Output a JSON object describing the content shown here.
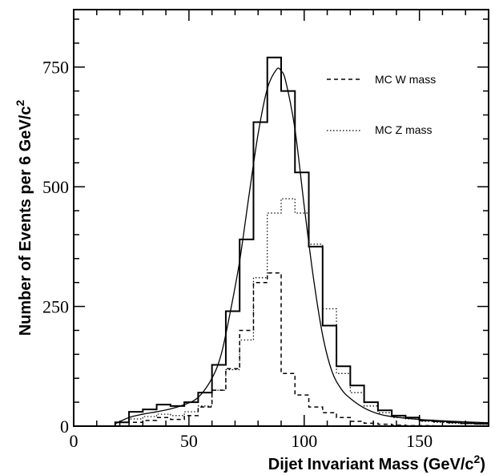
{
  "chart_data": {
    "type": "histogram",
    "title": "",
    "xlabel": "Dijet Invariant Mass (GeV/c",
    "xlabel_sup": "2",
    "xlabel_end": ")",
    "ylabel": "Number of Events per 6 GeV/c",
    "ylabel_sup": "2",
    "xlim": [
      0,
      180
    ],
    "ylim": [
      0,
      870
    ],
    "x_ticks": [
      0,
      50,
      100,
      150
    ],
    "x_tick_labels": [
      "0",
      "50",
      "100",
      "150"
    ],
    "y_ticks": [
      0,
      250,
      500,
      750
    ],
    "y_tick_labels": [
      "0",
      "250",
      "500",
      "750"
    ],
    "bin_edges": [
      18,
      24,
      30,
      36,
      42,
      48,
      54,
      60,
      66,
      72,
      78,
      84,
      90,
      96,
      102,
      108,
      114,
      120,
      126,
      132,
      138,
      144,
      150,
      156,
      162,
      168,
      174,
      180
    ],
    "series": [
      {
        "name": "",
        "style": "solid",
        "values": [
          8,
          30,
          35,
          45,
          42,
          50,
          70,
          128,
          240,
          390,
          635,
          770,
          700,
          530,
          375,
          210,
          125,
          85,
          50,
          33,
          22,
          18,
          12,
          10,
          8,
          6,
          5
        ]
      },
      {
        "name": "MC W mass",
        "style": "dashed",
        "values": [
          0,
          8,
          12,
          18,
          14,
          22,
          40,
          75,
          120,
          200,
          300,
          320,
          110,
          65,
          40,
          28,
          18,
          10,
          6,
          4,
          2,
          1,
          1,
          0,
          0,
          0,
          0
        ]
      },
      {
        "name": "MC Z mass",
        "style": "dotted",
        "values": [
          0,
          15,
          20,
          25,
          22,
          30,
          42,
          75,
          118,
          180,
          310,
          445,
          475,
          445,
          380,
          245,
          110,
          70,
          42,
          28,
          18,
          15,
          10,
          8,
          6,
          5,
          4
        ]
      }
    ],
    "fit_curve": {
      "style": "smooth solid",
      "x": [
        18,
        24,
        30,
        36,
        42,
        48,
        54,
        60,
        64,
        68,
        72,
        76,
        80,
        84,
        88,
        90,
        92,
        96,
        100,
        104,
        108,
        112,
        116,
        120,
        126,
        132,
        138,
        150,
        165,
        180
      ],
      "y": [
        5,
        18,
        25,
        30,
        36,
        45,
        60,
        100,
        150,
        240,
        345,
        480,
        610,
        705,
        745,
        742,
        720,
        620,
        460,
        310,
        190,
        115,
        78,
        58,
        38,
        26,
        20,
        14,
        10,
        7
      ]
    },
    "legend": {
      "placement": "top-right",
      "entries": [
        {
          "label": "MC W mass",
          "style": "dashed"
        },
        {
          "label": "MC Z mass",
          "style": "dotted"
        }
      ]
    }
  }
}
